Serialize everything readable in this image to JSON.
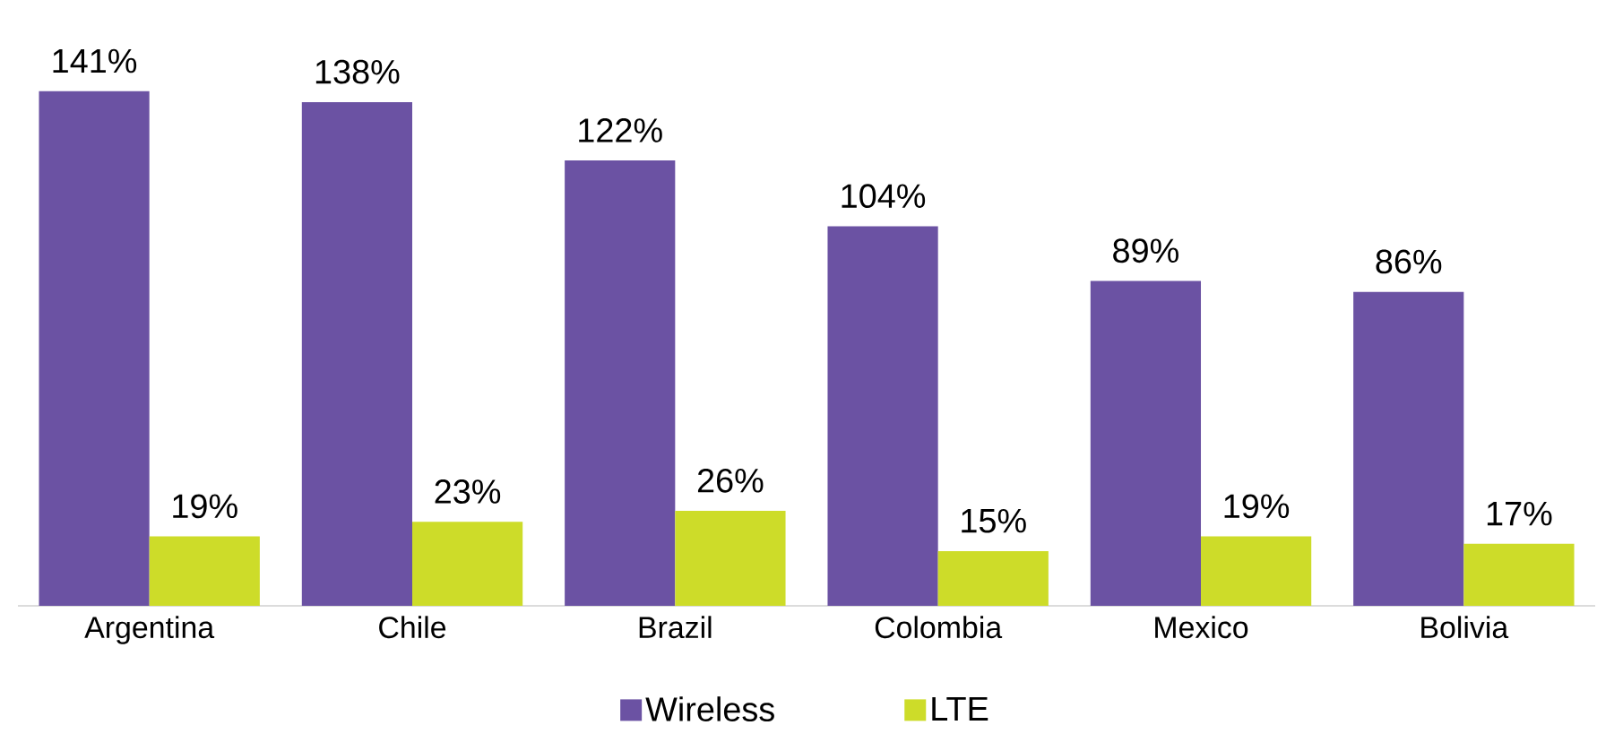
{
  "chart_data": {
    "type": "bar",
    "categories": [
      "Argentina",
      "Chile",
      "Brazil",
      "Colombia",
      "Mexico",
      "Bolivia"
    ],
    "series": [
      {
        "name": "Wireless",
        "color": "#6b52a3",
        "values": [
          141,
          138,
          122,
          104,
          89,
          86
        ],
        "value_labels": [
          "141%",
          "138%",
          "122%",
          "104%",
          "89%",
          "86%"
        ]
      },
      {
        "name": "LTE",
        "color": "#cddc29",
        "values": [
          19,
          23,
          26,
          15,
          19,
          17
        ],
        "value_labels": [
          "19%",
          "23%",
          "26%",
          "15%",
          "19%",
          "17%"
        ]
      }
    ],
    "legend": "bottom"
  }
}
